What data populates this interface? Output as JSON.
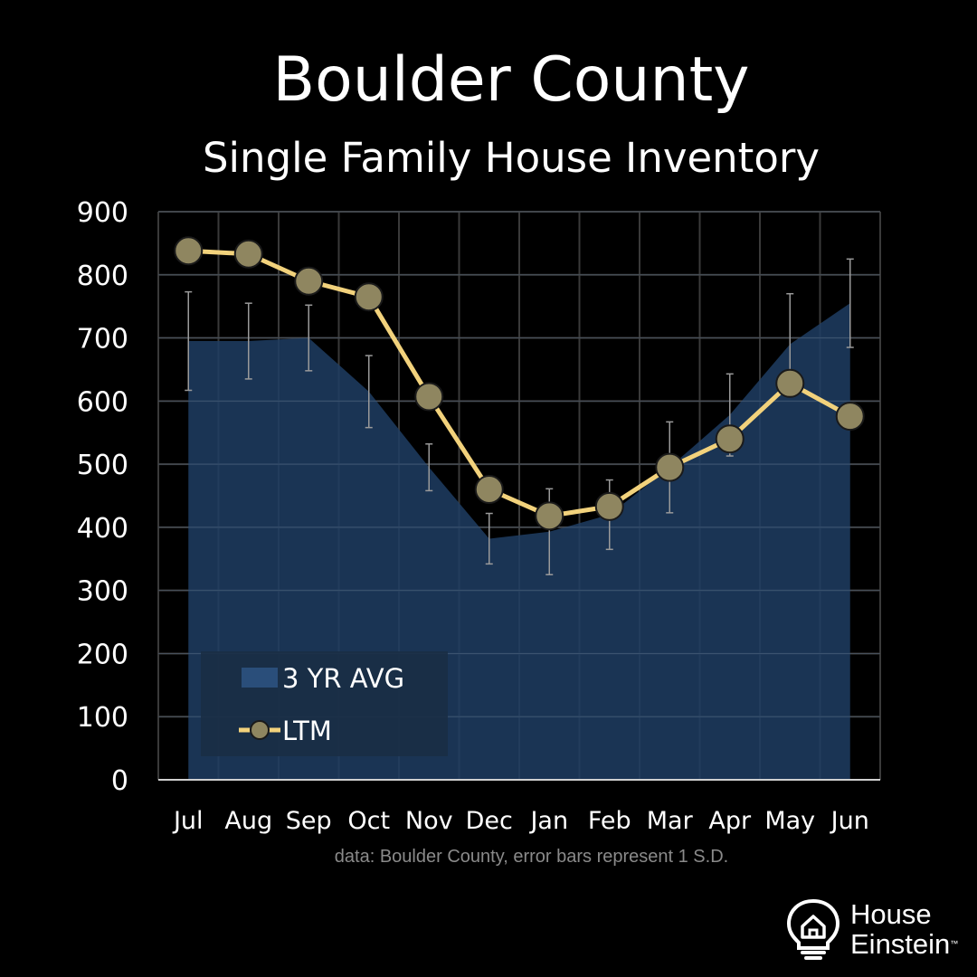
{
  "header": {
    "title": "Boulder County",
    "subtitle": "Single Family House Inventory"
  },
  "source_note": "data: Boulder County,  error bars represent 1 S.D.",
  "logo": {
    "line1": "House",
    "line2": "Einstein",
    "icon": "lightbulb-house-icon"
  },
  "colors": {
    "background": "#000000",
    "area_fill": "#1f3d63",
    "line": "#f2d27c",
    "marker_fill": "#8f8660",
    "grid": "#3a3a3a",
    "error_bar": "#9a9a9a",
    "legend_bg": "#1a2d45"
  },
  "chart_data": {
    "type": "area",
    "title": "Boulder County",
    "subtitle": "Single Family House Inventory",
    "categories": [
      "Jul",
      "Aug",
      "Sep",
      "Oct",
      "Nov",
      "Dec",
      "Jan",
      "Feb",
      "Mar",
      "Apr",
      "May",
      "Jun"
    ],
    "ylim": [
      0,
      900
    ],
    "yticks": [
      0,
      100,
      200,
      300,
      400,
      500,
      600,
      700,
      800,
      900
    ],
    "grid": true,
    "legend_position": "bottom-left",
    "series": [
      {
        "name": "3 YR AVG",
        "kind": "area",
        "values": [
          695,
          695,
          700,
          615,
          495,
          382,
          393,
          420,
          495,
          578,
          690,
          755
        ],
        "error_sd": [
          78,
          60,
          52,
          57,
          37,
          40,
          68,
          55,
          72,
          65,
          80,
          70
        ]
      },
      {
        "name": "LTM",
        "kind": "line",
        "values": [
          838,
          833,
          790,
          765,
          607,
          460,
          418,
          433,
          495,
          540,
          628,
          576
        ]
      }
    ]
  }
}
